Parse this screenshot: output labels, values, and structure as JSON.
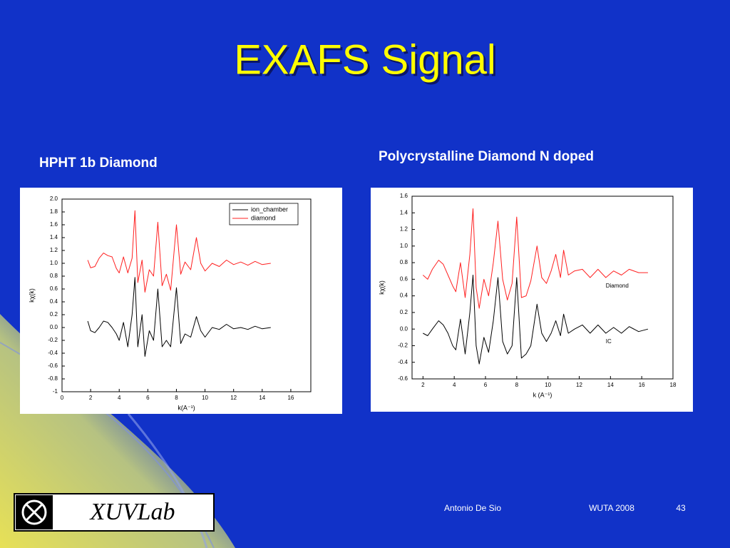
{
  "slide": {
    "title": "EXAFS Signal",
    "footer_author": "Antonio De Sio",
    "footer_event": "WUTA 2008",
    "page_number": "43",
    "logo_text": "XUVLab"
  },
  "chart_data": [
    {
      "type": "line",
      "title": "HPHT 1b Diamond",
      "xlabel": "k(A⁻¹)",
      "ylabel": "kχ(k)",
      "xlim": [
        0,
        17.4
      ],
      "ylim": [
        -1,
        2
      ],
      "xticks": [
        0,
        2,
        4,
        6,
        8,
        10,
        12,
        14,
        16
      ],
      "yticks": [
        -1.0,
        -0.8,
        -0.6,
        -0.4,
        -0.2,
        {
          "value": 0,
          "label": "0.0"
        },
        0.2,
        0.4,
        0.6,
        0.8,
        {
          "value": 1,
          "label": "1.0"
        },
        1.2,
        1.4,
        1.6,
        1.8,
        {
          "value": 2,
          "label": "2.0"
        }
      ],
      "legend": "upper right",
      "x": [
        1.8,
        2.0,
        2.3,
        2.6,
        2.9,
        3.2,
        3.5,
        3.8,
        4.0,
        4.3,
        4.6,
        4.9,
        5.1,
        5.3,
        5.6,
        5.8,
        6.1,
        6.4,
        6.7,
        7.0,
        7.3,
        7.6,
        8.0,
        8.3,
        8.6,
        9.0,
        9.4,
        9.7,
        10.0,
        10.5,
        11.0,
        11.5,
        12.0,
        12.5,
        13.0,
        13.5,
        14.0,
        14.6
      ],
      "series": [
        {
          "name": "ion_chamber",
          "color": "#000000",
          "values": [
            0.1,
            -0.05,
            -0.08,
            0.0,
            0.1,
            0.08,
            0.0,
            -0.1,
            -0.2,
            0.08,
            -0.3,
            0.2,
            0.78,
            -0.3,
            0.2,
            -0.45,
            -0.05,
            -0.2,
            0.6,
            -0.3,
            -0.2,
            -0.3,
            0.62,
            -0.25,
            -0.1,
            -0.15,
            0.17,
            -0.05,
            -0.15,
            0.0,
            -0.03,
            0.05,
            -0.02,
            0.0,
            -0.03,
            0.02,
            -0.02,
            0.0
          ]
        },
        {
          "name": "diamond",
          "color": "#ff2020",
          "values": [
            1.05,
            0.93,
            0.95,
            1.08,
            1.16,
            1.12,
            1.1,
            0.92,
            0.85,
            1.1,
            0.85,
            1.08,
            1.82,
            0.7,
            1.05,
            0.55,
            0.9,
            0.8,
            1.64,
            0.65,
            0.83,
            0.58,
            1.6,
            0.83,
            1.02,
            0.9,
            1.4,
            1.0,
            0.88,
            1.0,
            0.95,
            1.05,
            0.98,
            1.02,
            0.97,
            1.03,
            0.98,
            1.0
          ]
        }
      ]
    },
    {
      "type": "line",
      "title": "Polycrystalline Diamond N doped",
      "xlabel": "k (A⁻¹)",
      "ylabel": "kχ(k)",
      "xlim": [
        1.3,
        18
      ],
      "ylim": [
        -0.6,
        1.6
      ],
      "xticks": [
        2,
        4,
        6,
        8,
        10,
        12,
        14,
        16,
        18
      ],
      "yticks": [
        -0.6,
        -0.4,
        -0.2,
        {
          "value": 0,
          "label": "0.0"
        },
        0.2,
        0.4,
        0.6,
        0.8,
        {
          "value": 1,
          "label": "1.0"
        },
        1.2,
        1.4,
        1.6
      ],
      "legend": "inline",
      "x": [
        2.0,
        2.3,
        2.6,
        3.0,
        3.3,
        3.6,
        3.9,
        4.1,
        4.4,
        4.7,
        5.0,
        5.2,
        5.4,
        5.6,
        5.9,
        6.2,
        6.5,
        6.8,
        7.1,
        7.4,
        7.7,
        8.0,
        8.3,
        8.6,
        8.9,
        9.3,
        9.6,
        9.9,
        10.2,
        10.5,
        10.8,
        11.0,
        11.3,
        11.7,
        12.2,
        12.7,
        13.2,
        13.7,
        14.2,
        14.7,
        15.2,
        15.8,
        16.4
      ],
      "series": [
        {
          "name": "Diamond",
          "color": "#ff2020",
          "values": [
            0.65,
            0.6,
            0.72,
            0.83,
            0.78,
            0.65,
            0.52,
            0.45,
            0.8,
            0.38,
            0.9,
            1.45,
            0.5,
            0.25,
            0.6,
            0.4,
            0.8,
            1.3,
            0.6,
            0.35,
            0.55,
            1.35,
            0.38,
            0.4,
            0.58,
            1.0,
            0.62,
            0.55,
            0.7,
            0.9,
            0.62,
            0.95,
            0.65,
            0.7,
            0.72,
            0.62,
            0.72,
            0.62,
            0.7,
            0.65,
            0.72,
            0.68,
            0.68
          ]
        },
        {
          "name": "IC",
          "color": "#000000",
          "values": [
            -0.05,
            -0.08,
            0.0,
            0.1,
            0.05,
            -0.05,
            -0.2,
            -0.25,
            0.12,
            -0.3,
            0.2,
            0.65,
            -0.2,
            -0.42,
            -0.1,
            -0.28,
            0.1,
            0.62,
            -0.15,
            -0.3,
            -0.2,
            0.62,
            -0.35,
            -0.3,
            -0.2,
            0.3,
            -0.05,
            -0.15,
            -0.05,
            0.1,
            -0.08,
            0.18,
            -0.05,
            0.0,
            0.05,
            -0.05,
            0.05,
            -0.05,
            0.02,
            -0.05,
            0.03,
            -0.03,
            0.0
          ]
        }
      ]
    }
  ]
}
